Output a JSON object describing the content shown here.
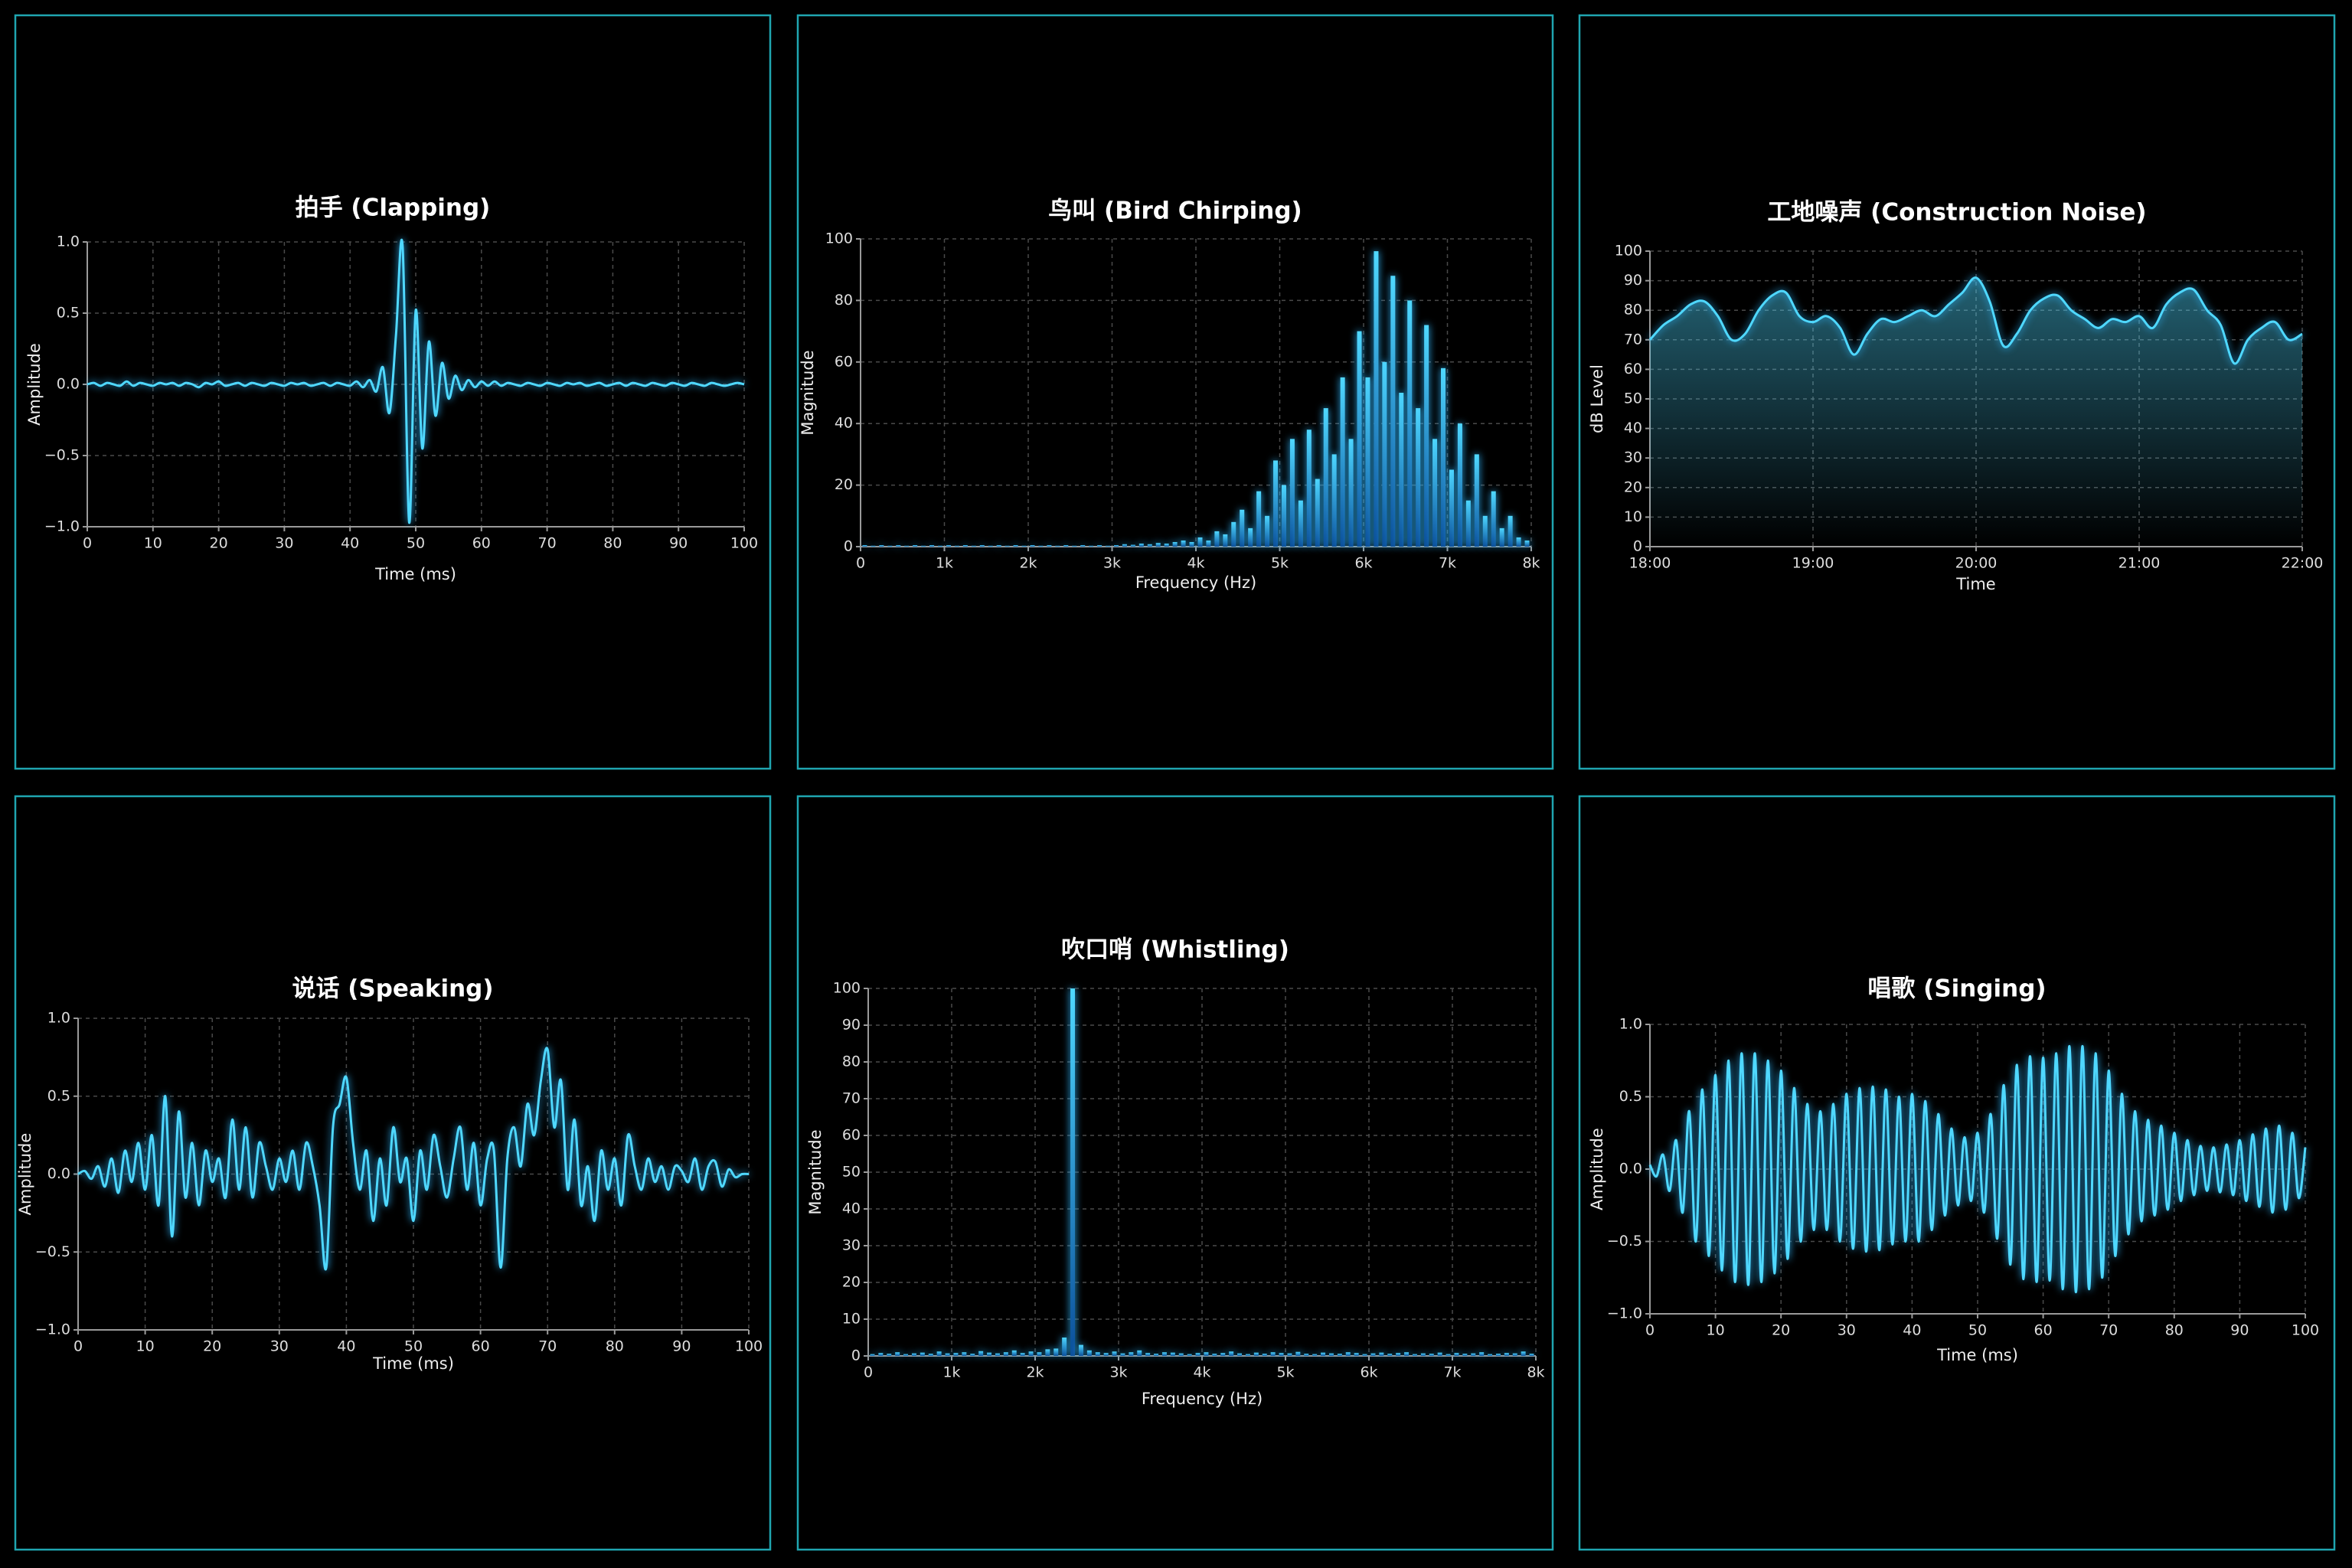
{
  "chart_data": [
    {
      "type": "line",
      "title": "拍手 (Clapping)",
      "x_label": "Time (ms)",
      "y_label": "Amplitude",
      "color": "#4fd8ff",
      "grid": true,
      "xlim": [
        0,
        100
      ],
      "ylim": [
        -1,
        1
      ],
      "xticks": [
        0,
        10,
        20,
        30,
        40,
        50,
        60,
        70,
        80,
        90,
        100
      ],
      "yticks": [
        {
          "value": -1,
          "label": "−1.0"
        },
        {
          "value": -0.5,
          "label": "−0.5"
        },
        {
          "value": 0,
          "label": "0.0"
        },
        {
          "value": 0.5,
          "label": "0.5"
        },
        {
          "value": 1,
          "label": "1.0"
        }
      ],
      "x": [
        0,
        1,
        2,
        3,
        4,
        5,
        6,
        7,
        8,
        9,
        10,
        11,
        12,
        13,
        14,
        15,
        16,
        17,
        18,
        19,
        20,
        21,
        22,
        23,
        24,
        25,
        26,
        27,
        28,
        29,
        30,
        31,
        32,
        33,
        34,
        35,
        36,
        37,
        38,
        39,
        40,
        41,
        42,
        43,
        44,
        45,
        46,
        47,
        48,
        49,
        50,
        51,
        52,
        53,
        54,
        55,
        56,
        57,
        58,
        59,
        60,
        61,
        62,
        63,
        64,
        65,
        66,
        67,
        68,
        69,
        70,
        71,
        72,
        73,
        74,
        75,
        76,
        77,
        78,
        79,
        80,
        81,
        82,
        83,
        84,
        85,
        86,
        87,
        88,
        89,
        90,
        91,
        92,
        93,
        94,
        95,
        96,
        97,
        98,
        99,
        100
      ],
      "values": [
        0,
        0.01,
        -0.01,
        0.01,
        0,
        -0.01,
        0.02,
        -0.01,
        0.01,
        0,
        -0.01,
        0.01,
        0,
        0.01,
        -0.01,
        0.01,
        0,
        -0.02,
        0.01,
        0,
        0.02,
        -0.01,
        0,
        0.01,
        -0.01,
        0.01,
        0,
        -0.01,
        0.01,
        0,
        -0.01,
        0.01,
        0,
        0.01,
        -0.01,
        0,
        0.01,
        -0.01,
        0.01,
        0,
        -0.01,
        0.02,
        -0.02,
        0.03,
        -0.05,
        0.12,
        -0.2,
        0.35,
        0.97,
        -0.97,
        0.52,
        -0.45,
        0.3,
        -0.22,
        0.15,
        -0.1,
        0.06,
        -0.04,
        0.03,
        -0.02,
        0.02,
        -0.01,
        0.02,
        -0.01,
        0.01,
        0,
        -0.01,
        0.01,
        0,
        -0.01,
        0.01,
        0,
        -0.01,
        0.01,
        0,
        0.01,
        -0.01,
        0,
        0.01,
        -0.01,
        0,
        0.01,
        -0.01,
        0.01,
        0,
        -0.01,
        0.01,
        0,
        -0.01,
        0.01,
        0,
        -0.01,
        0.01,
        0,
        -0.01,
        0.01,
        0,
        -0.01,
        0,
        0.01,
        0
      ]
    },
    {
      "type": "bar",
      "title": "鸟叫 (Bird Chirping)",
      "x_label": "Frequency (Hz)",
      "y_label": "Magnitude",
      "color": "#4fd8ff",
      "grid": true,
      "xlim": [
        0,
        8000
      ],
      "ylim": [
        0,
        100
      ],
      "xticks": [
        0,
        {
          "value": 1000,
          "label": "1k"
        },
        {
          "value": 2000,
          "label": "2k"
        },
        {
          "value": 3000,
          "label": "3k"
        },
        {
          "value": 4000,
          "label": "4k"
        },
        {
          "value": 5000,
          "label": "5k"
        },
        {
          "value": 6000,
          "label": "6k"
        },
        {
          "value": 7000,
          "label": "7k"
        },
        {
          "value": 8000,
          "label": "8k"
        }
      ],
      "yticks": [
        0,
        20,
        40,
        60,
        80,
        100
      ],
      "x": [
        50,
        150,
        250,
        350,
        450,
        550,
        650,
        750,
        850,
        950,
        1050,
        1150,
        1250,
        1350,
        1450,
        1550,
        1650,
        1750,
        1850,
        1950,
        2050,
        2150,
        2250,
        2350,
        2450,
        2550,
        2650,
        2750,
        2850,
        2950,
        3050,
        3150,
        3250,
        3350,
        3450,
        3550,
        3650,
        3750,
        3850,
        3950,
        4050,
        4150,
        4250,
        4350,
        4450,
        4550,
        4650,
        4750,
        4850,
        4950,
        5050,
        5150,
        5250,
        5350,
        5450,
        5550,
        5650,
        5750,
        5850,
        5950,
        6050,
        6150,
        6250,
        6350,
        6450,
        6550,
        6650,
        6750,
        6850,
        6950,
        7050,
        7150,
        7250,
        7350,
        7450,
        7550,
        7650,
        7750,
        7850,
        7950
      ],
      "values": [
        0.5,
        0.3,
        0.5,
        0.3,
        0.5,
        0.3,
        0.5,
        0.3,
        0.5,
        0.3,
        0.5,
        0.3,
        0.5,
        0.3,
        0.5,
        0.3,
        0.5,
        0.3,
        0.5,
        0.3,
        0.5,
        0.3,
        0.5,
        0.3,
        0.5,
        0.3,
        0.5,
        0.3,
        0.5,
        0.3,
        0.5,
        0.8,
        0.6,
        1,
        0.8,
        1.2,
        1,
        1.5,
        2,
        1.5,
        3,
        2,
        5,
        4,
        8,
        12,
        6,
        18,
        10,
        28,
        20,
        35,
        15,
        38,
        22,
        45,
        30,
        55,
        35,
        70,
        55,
        96,
        60,
        88,
        50,
        80,
        45,
        72,
        35,
        58,
        25,
        40,
        15,
        30,
        10,
        18,
        6,
        10,
        3,
        2
      ]
    },
    {
      "type": "area",
      "title": "工地噪声 (Construction Noise)",
      "x_label": "Time",
      "y_label": "dB Level",
      "color": "#4fd8ff",
      "grid": true,
      "xlim": [
        "18:00",
        "22:00"
      ],
      "ylim": [
        0,
        100
      ],
      "xticks": [
        "18:00",
        "19:00",
        "20:00",
        "21:00",
        "22:00"
      ],
      "yticks": [
        0,
        10,
        20,
        30,
        40,
        50,
        60,
        70,
        80,
        90,
        100
      ],
      "x": [
        "18:00",
        "18:05",
        "18:10",
        "18:15",
        "18:20",
        "18:25",
        "18:30",
        "18:35",
        "18:40",
        "18:45",
        "18:50",
        "18:55",
        "19:00",
        "19:05",
        "19:10",
        "19:15",
        "19:20",
        "19:25",
        "19:30",
        "19:35",
        "19:40",
        "19:45",
        "19:50",
        "19:55",
        "20:00",
        "20:05",
        "20:10",
        "20:15",
        "20:20",
        "20:25",
        "20:30",
        "20:35",
        "20:40",
        "20:45",
        "20:50",
        "20:55",
        "21:00",
        "21:05",
        "21:10",
        "21:15",
        "21:20",
        "21:25",
        "21:30",
        "21:35",
        "21:40",
        "21:45",
        "21:50",
        "21:55",
        "22:00"
      ],
      "values": [
        70,
        75,
        78,
        82,
        83,
        78,
        70,
        72,
        80,
        85,
        86,
        78,
        76,
        78,
        74,
        65,
        72,
        77,
        76,
        78,
        80,
        78,
        82,
        86,
        91,
        83,
        68,
        72,
        80,
        84,
        85,
        80,
        77,
        74,
        77,
        76,
        78,
        74,
        82,
        86,
        87,
        80,
        75,
        62,
        70,
        74,
        76,
        70,
        72
      ]
    },
    {
      "type": "line",
      "title": "说话 (Speaking)",
      "x_label": "Time (ms)",
      "y_label": "Amplitude",
      "color": "#4fd8ff",
      "grid": true,
      "xlim": [
        0,
        100
      ],
      "ylim": [
        -1,
        1
      ],
      "xticks": [
        0,
        10,
        20,
        30,
        40,
        50,
        60,
        70,
        80,
        90,
        100
      ],
      "yticks": [
        {
          "value": -1,
          "label": "−1.0"
        },
        {
          "value": -0.5,
          "label": "−0.5"
        },
        {
          "value": 0,
          "label": "0.0"
        },
        {
          "value": 0.5,
          "label": "0.5"
        },
        {
          "value": 1,
          "label": "1.0"
        }
      ],
      "x": [
        0,
        1,
        2,
        3,
        4,
        5,
        6,
        7,
        8,
        9,
        10,
        11,
        12,
        13,
        14,
        15,
        16,
        17,
        18,
        19,
        20,
        21,
        22,
        23,
        24,
        25,
        26,
        27,
        28,
        29,
        30,
        31,
        32,
        33,
        34,
        35,
        36,
        37,
        38,
        39,
        40,
        41,
        42,
        43,
        44,
        45,
        46,
        47,
        48,
        49,
        50,
        51,
        52,
        53,
        54,
        55,
        56,
        57,
        58,
        59,
        60,
        61,
        62,
        63,
        64,
        65,
        66,
        67,
        68,
        69,
        70,
        71,
        72,
        73,
        74,
        75,
        76,
        77,
        78,
        79,
        80,
        81,
        82,
        83,
        84,
        85,
        86,
        87,
        88,
        89,
        90,
        91,
        92,
        93,
        94,
        95,
        96,
        97,
        98,
        99,
        100
      ],
      "values": [
        0,
        0.02,
        -0.03,
        0.05,
        -0.08,
        0.1,
        -0.12,
        0.15,
        -0.05,
        0.2,
        -0.1,
        0.25,
        -0.2,
        0.5,
        -0.4,
        0.4,
        -0.15,
        0.2,
        -0.2,
        0.15,
        -0.05,
        0.1,
        -0.15,
        0.35,
        -0.1,
        0.3,
        -0.15,
        0.2,
        0.05,
        -0.1,
        0.1,
        -0.05,
        0.15,
        -0.1,
        0.2,
        0.05,
        -0.2,
        -0.6,
        0.3,
        0.45,
        0.62,
        0.2,
        -0.1,
        0.15,
        -0.3,
        0.1,
        -0.2,
        0.3,
        -0.05,
        0.1,
        -0.3,
        0.15,
        -0.1,
        0.25,
        0.05,
        -0.15,
        0.1,
        0.3,
        -0.1,
        0.2,
        -0.2,
        0.1,
        0.15,
        -0.6,
        0.1,
        0.3,
        0.05,
        0.45,
        0.25,
        0.6,
        0.8,
        0.3,
        0.6,
        -0.1,
        0.35,
        -0.2,
        0.05,
        -0.3,
        0.15,
        -0.1,
        0.1,
        -0.2,
        0.25,
        0.05,
        -0.1,
        0.1,
        -0.05,
        0.05,
        -0.1,
        0.05,
        0.02,
        -0.05,
        0.1,
        -0.1,
        0.05,
        0.08,
        -0.08,
        0.03,
        -0.02,
        0,
        0
      ]
    },
    {
      "type": "bar",
      "title": "吹口哨 (Whistling)",
      "x_label": "Frequency (Hz)",
      "y_label": "Magnitude",
      "color": "#4fd8ff",
      "grid": true,
      "xlim": [
        0,
        8000
      ],
      "ylim": [
        0,
        100
      ],
      "xticks": [
        0,
        {
          "value": 1000,
          "label": "1k"
        },
        {
          "value": 2000,
          "label": "2k"
        },
        {
          "value": 3000,
          "label": "3k"
        },
        {
          "value": 4000,
          "label": "4k"
        },
        {
          "value": 5000,
          "label": "5k"
        },
        {
          "value": 6000,
          "label": "6k"
        },
        {
          "value": 7000,
          "label": "7k"
        },
        {
          "value": 8000,
          "label": "8k"
        }
      ],
      "yticks": [
        0,
        10,
        20,
        30,
        40,
        50,
        60,
        70,
        80,
        90,
        100
      ],
      "x": [
        50,
        150,
        250,
        350,
        450,
        550,
        650,
        750,
        850,
        950,
        1050,
        1150,
        1250,
        1350,
        1450,
        1550,
        1650,
        1750,
        1850,
        1950,
        2050,
        2150,
        2250,
        2350,
        2450,
        2550,
        2650,
        2750,
        2850,
        2950,
        3050,
        3150,
        3250,
        3350,
        3450,
        3550,
        3650,
        3750,
        3850,
        3950,
        4050,
        4150,
        4250,
        4350,
        4450,
        4550,
        4650,
        4750,
        4850,
        4950,
        5050,
        5150,
        5250,
        5350,
        5450,
        5550,
        5650,
        5750,
        5850,
        5950,
        6050,
        6150,
        6250,
        6350,
        6450,
        6550,
        6650,
        6750,
        6850,
        6950,
        7050,
        7150,
        7250,
        7350,
        7450,
        7550,
        7650,
        7750,
        7850,
        7950
      ],
      "values": [
        0.5,
        0.8,
        0.6,
        1,
        0.5,
        0.7,
        0.9,
        0.6,
        1.2,
        0.7,
        0.8,
        1,
        0.6,
        1.3,
        0.9,
        0.7,
        1,
        1.5,
        0.8,
        1.2,
        1,
        1.8,
        2,
        5,
        100,
        3,
        1.5,
        1,
        0.8,
        1.2,
        0.7,
        1,
        1.5,
        0.8,
        0.6,
        1,
        0.9,
        0.7,
        0.5,
        0.8,
        1,
        0.6,
        0.8,
        1.2,
        0.7,
        0.5,
        0.9,
        0.6,
        1,
        0.8,
        0.7,
        1.1,
        0.6,
        0.5,
        0.9,
        0.7,
        0.6,
        1,
        0.8,
        0.5,
        0.7,
        0.9,
        0.6,
        0.8,
        1,
        0.5,
        0.7,
        0.6,
        0.9,
        0.5,
        0.8,
        0.6,
        0.7,
        1,
        0.5,
        0.6,
        0.8,
        0.7,
        1.2,
        0.6
      ]
    },
    {
      "type": "line",
      "title": "唱歌 (Singing)",
      "x_label": "Time (ms)",
      "y_label": "Amplitude",
      "color": "#4fd8ff",
      "grid": true,
      "xlim": [
        0,
        100
      ],
      "ylim": [
        -1,
        1
      ],
      "xticks": [
        0,
        10,
        20,
        30,
        40,
        50,
        60,
        70,
        80,
        90,
        100
      ],
      "yticks": [
        {
          "value": -1,
          "label": "−1.0"
        },
        {
          "value": -0.5,
          "label": "−0.5"
        },
        {
          "value": 0,
          "label": "0.0"
        },
        {
          "value": 0.5,
          "label": "0.5"
        },
        {
          "value": 1,
          "label": "1.0"
        }
      ],
      "x": [
        0,
        1,
        2,
        3,
        4,
        5,
        6,
        7,
        8,
        9,
        10,
        11,
        12,
        13,
        14,
        15,
        16,
        17,
        18,
        19,
        20,
        21,
        22,
        23,
        24,
        25,
        26,
        27,
        28,
        29,
        30,
        31,
        32,
        33,
        34,
        35,
        36,
        37,
        38,
        39,
        40,
        41,
        42,
        43,
        44,
        45,
        46,
        47,
        48,
        49,
        50,
        51,
        52,
        53,
        54,
        55,
        56,
        57,
        58,
        59,
        60,
        61,
        62,
        63,
        64,
        65,
        66,
        67,
        68,
        69,
        70,
        71,
        72,
        73,
        74,
        75,
        76,
        77,
        78,
        79,
        80,
        81,
        82,
        83,
        84,
        85,
        86,
        87,
        88,
        89,
        90,
        91,
        92,
        93,
        94,
        95,
        96,
        97,
        98,
        99,
        100
      ],
      "values": [
        0.03,
        -0.05,
        0.1,
        -0.15,
        0.2,
        -0.3,
        0.4,
        -0.5,
        0.55,
        -0.6,
        0.65,
        -0.7,
        0.75,
        -0.78,
        0.8,
        -0.8,
        0.8,
        -0.78,
        0.75,
        -0.72,
        0.68,
        -0.62,
        0.56,
        -0.5,
        0.45,
        -0.42,
        0.4,
        -0.42,
        0.45,
        -0.5,
        0.52,
        -0.55,
        0.56,
        -0.57,
        0.57,
        -0.56,
        0.55,
        -0.52,
        0.5,
        -0.5,
        0.52,
        -0.5,
        0.47,
        -0.42,
        0.38,
        -0.32,
        0.28,
        -0.25,
        0.22,
        -0.22,
        0.25,
        -0.3,
        0.38,
        -0.48,
        0.58,
        -0.66,
        0.72,
        -0.76,
        0.78,
        -0.78,
        0.77,
        -0.77,
        0.8,
        -0.83,
        0.85,
        -0.85,
        0.85,
        -0.83,
        0.8,
        -0.75,
        0.68,
        -0.6,
        0.52,
        -0.45,
        0.4,
        -0.36,
        0.34,
        -0.32,
        0.3,
        -0.28,
        0.25,
        -0.22,
        0.2,
        -0.18,
        0.16,
        -0.15,
        0.15,
        -0.16,
        0.17,
        -0.18,
        0.2,
        -0.22,
        0.24,
        -0.26,
        0.28,
        -0.3,
        0.3,
        -0.28,
        0.25,
        -0.2,
        0.15
      ]
    }
  ]
}
